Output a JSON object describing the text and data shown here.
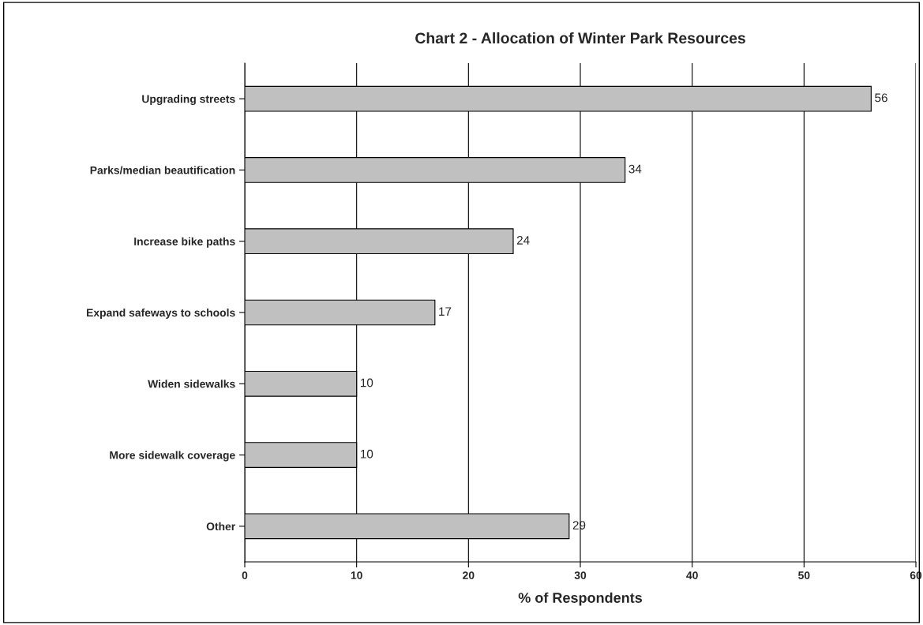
{
  "chart_data": {
    "type": "bar",
    "orientation": "horizontal",
    "title": "Chart 2 - Allocation of Winter Park Resources",
    "xlabel": "% of Respondents",
    "categories": [
      "Upgrading streets",
      "Parks/median beautification",
      "Increase bike paths",
      "Expand safeways to schools",
      "Widen sidewalks",
      "More sidewalk coverage",
      "Other"
    ],
    "values": [
      56,
      34,
      24,
      17,
      10,
      10,
      29
    ],
    "color": "#c0c0c0",
    "xlim": [
      0,
      60
    ],
    "xticks": [
      0,
      10,
      20,
      30,
      40,
      50,
      60
    ],
    "grid": "x",
    "data_labels": true,
    "legend": false
  }
}
